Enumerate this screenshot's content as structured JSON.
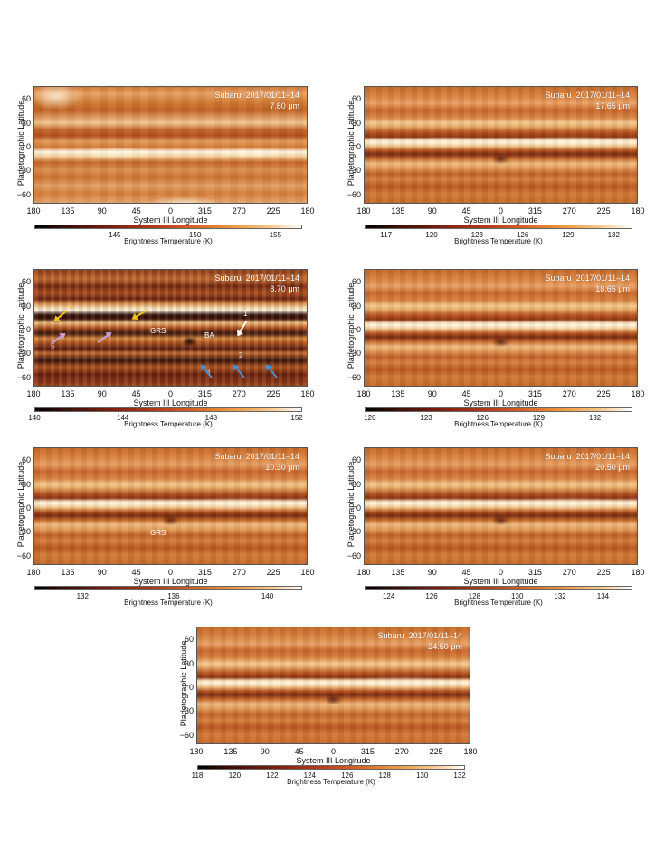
{
  "common": {
    "observatory": "Subaru",
    "date": "2017/01/11–14",
    "y_axis_label": "Planetographic Latitude",
    "x_axis_label": "System III Longitude",
    "colorbar_label": "Brightness Temperature (K)",
    "lat_ticks": [
      "60",
      "30",
      "0",
      "−30",
      "−60"
    ],
    "lon_ticks": [
      "180",
      "135",
      "90",
      "45",
      "0",
      "315",
      "270",
      "225",
      "180"
    ]
  },
  "panels": [
    {
      "id": "p1",
      "wavelength": "7.80 μm",
      "temps": [
        "145",
        "150",
        "155"
      ]
    },
    {
      "id": "p2",
      "wavelength": "17.65 μm",
      "temps": [
        "117",
        "120",
        "123",
        "126",
        "129",
        "132"
      ]
    },
    {
      "id": "p3",
      "wavelength": "8.70 μm",
      "temps": [
        "140",
        "144",
        "148",
        "152"
      ],
      "annotations": {
        "grs": "GRS",
        "ba": "BA",
        "n1": "1",
        "n2": "2",
        "n3": "3",
        "n4": "4",
        "n5": "5"
      }
    },
    {
      "id": "p4",
      "wavelength": "18.65 μm",
      "temps": [
        "120",
        "123",
        "126",
        "129",
        "132"
      ]
    },
    {
      "id": "p5",
      "wavelength": "10.30 μm",
      "temps": [
        "132",
        "136",
        "140"
      ],
      "annotations": {
        "grs": "GRS"
      }
    },
    {
      "id": "p6",
      "wavelength": "20.50 μm",
      "temps": [
        "124",
        "126",
        "128",
        "130",
        "132",
        "134"
      ]
    },
    {
      "id": "p7",
      "wavelength": "24.50 μm",
      "temps": [
        "118",
        "120",
        "122",
        "124",
        "126",
        "128",
        "130",
        "132"
      ]
    }
  ],
  "colors": {
    "arrow_yellow": "#f2c21a",
    "arrow_purple": "#c7a2d8",
    "arrow_white": "#ffffff",
    "arrow_blue": "#4f8fc9"
  }
}
